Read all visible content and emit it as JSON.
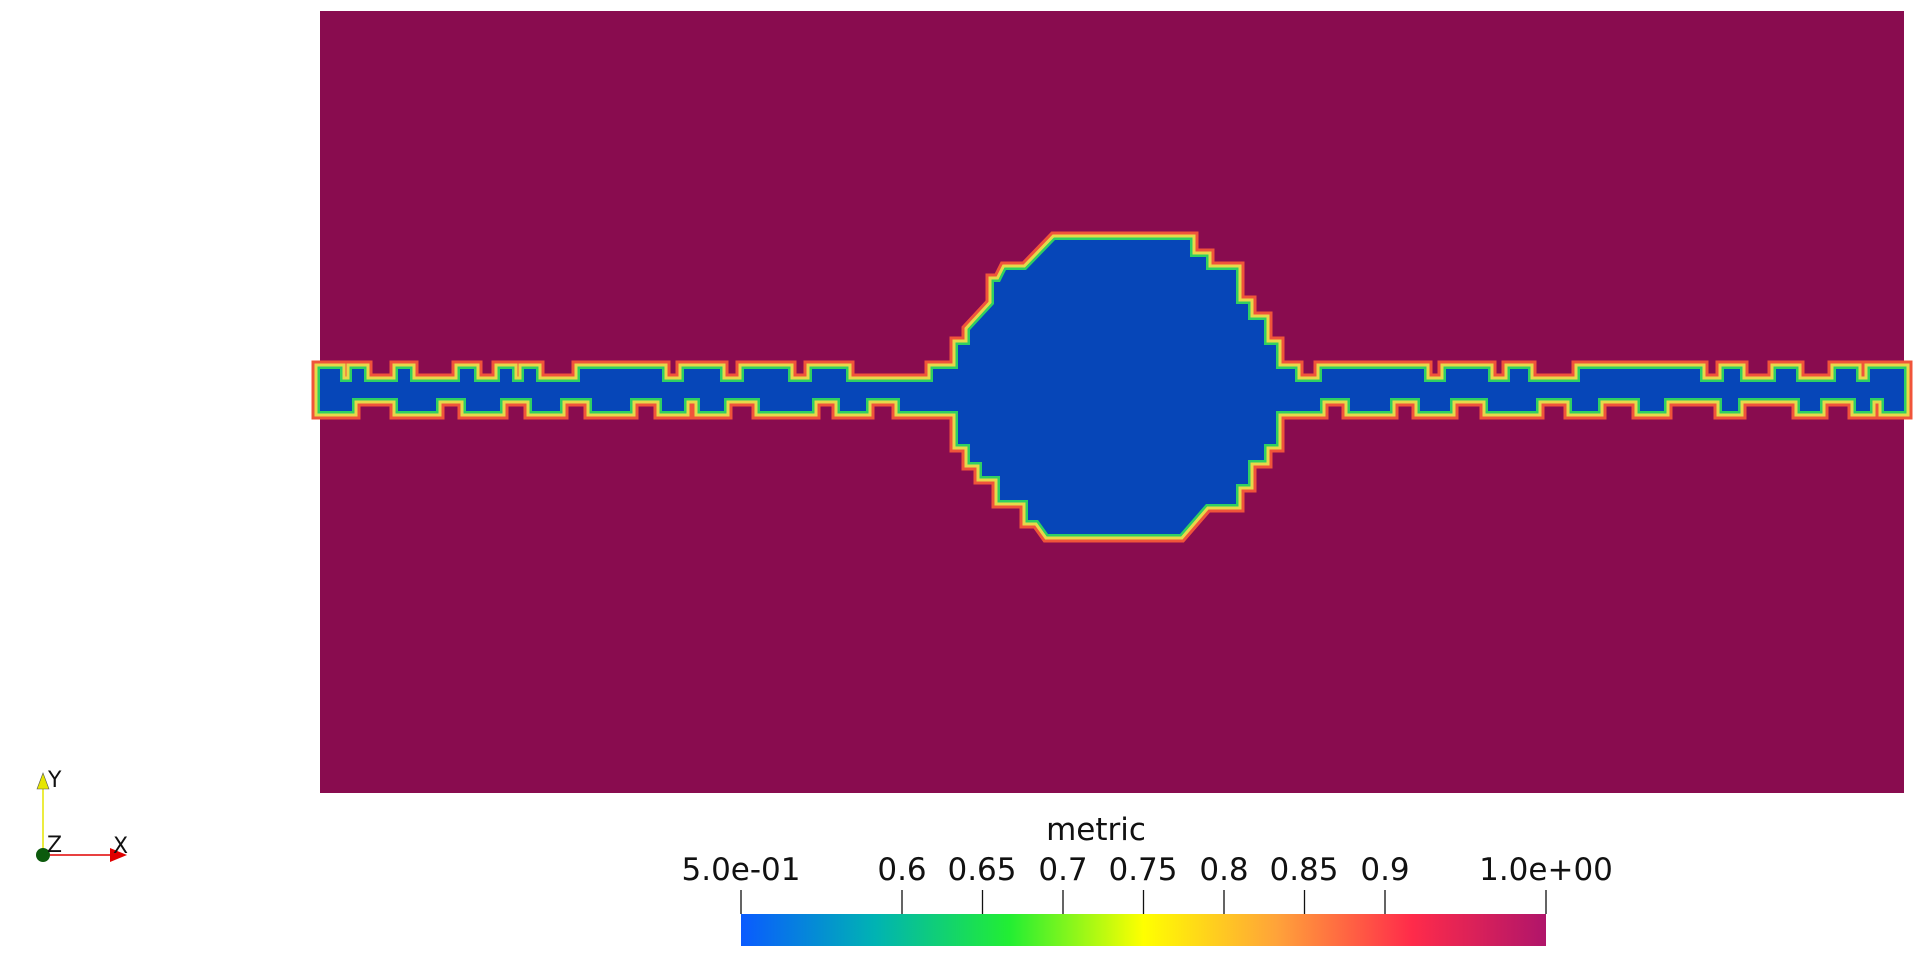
{
  "scalar_name": "metric",
  "colorbar": {
    "range": [
      0.5,
      1.0
    ],
    "min_label": "5.0e-01",
    "max_label": "1.0e+00",
    "ticks": [
      {
        "value": 0.6,
        "label": "0.6"
      },
      {
        "value": 0.65,
        "label": "0.65"
      },
      {
        "value": 0.7,
        "label": "0.7"
      },
      {
        "value": 0.75,
        "label": "0.75"
      },
      {
        "value": 0.8,
        "label": "0.8"
      },
      {
        "value": 0.85,
        "label": "0.85"
      },
      {
        "value": 0.9,
        "label": "0.9"
      }
    ],
    "colormap": [
      "#0a5bff",
      "#00b3b3",
      "#22ee33",
      "#ffff00",
      "#ffa23a",
      "#ff2b4a",
      "#b0156a"
    ]
  },
  "field": {
    "background_value_color": "#890c4f",
    "feature_value_color": "#0646b8"
  },
  "orientation_axes": {
    "x_label": "X",
    "y_label": "Y",
    "z_label": "Z",
    "x_color": "#e00000",
    "y_color": "#e6e600",
    "z_color": "#00a000"
  }
}
